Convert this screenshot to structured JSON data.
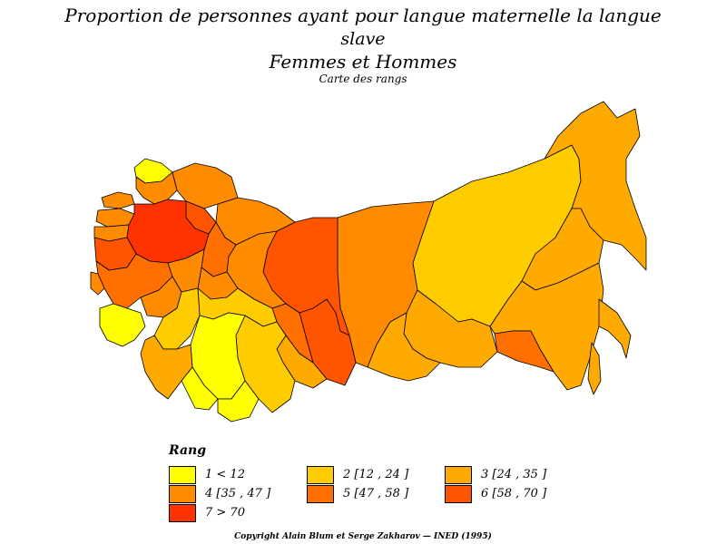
{
  "title": {
    "line1": "Proportion de personnes ayant pour langue maternelle la langue",
    "line2": "slave",
    "line3": "Femmes et Hommes"
  },
  "subtitle": "Carte des rangs",
  "legend": {
    "title": "Rang",
    "items": [
      {
        "label": "1  <  12",
        "color": "#FFFF00"
      },
      {
        "label": "2  [12 ,  24 ]",
        "color": "#FFCC00"
      },
      {
        "label": "3  [24 ,  35 ]",
        "color": "#FFAA00"
      },
      {
        "label": "4  [35 ,  47 ]",
        "color": "#FF8C00"
      },
      {
        "label": "5  [47 ,  58 ]",
        "color": "#FF7000"
      },
      {
        "label": "6  [58 ,  70 ]",
        "color": "#FF5500"
      },
      {
        "label": "7  >  70",
        "color": "#FF3300"
      }
    ]
  },
  "copyright": "Copyright Alain Blum et Serge Zakharov  —  INED (1995)"
}
